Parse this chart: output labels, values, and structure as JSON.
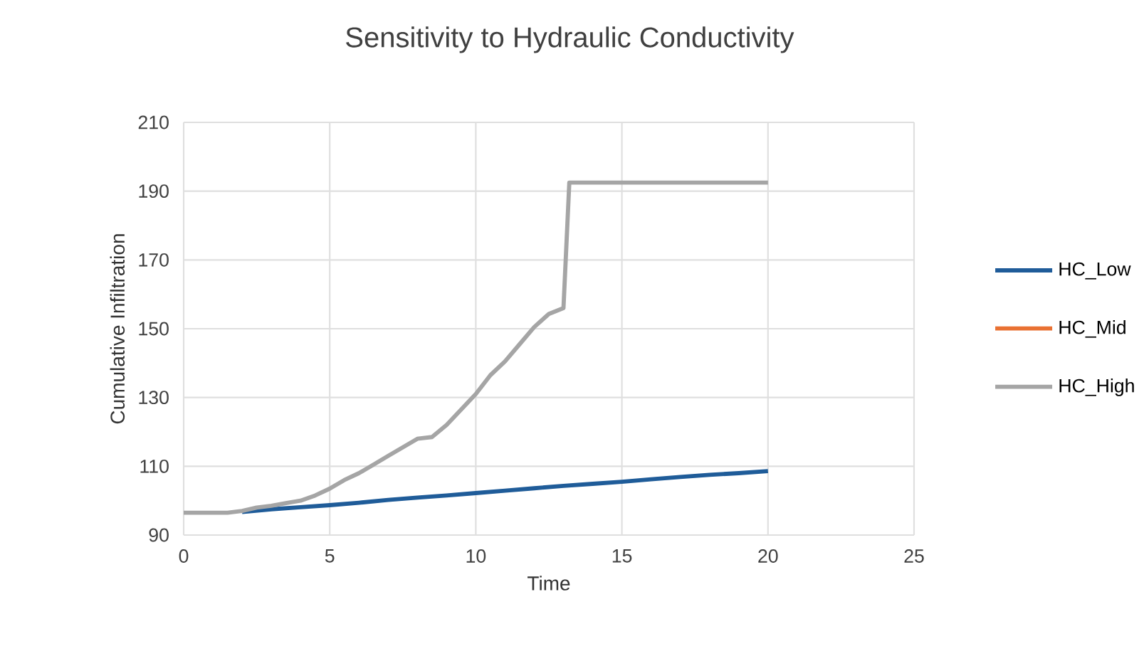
{
  "chart_data": {
    "type": "line",
    "title": "Sensitivity to Hydraulic Conductivity",
    "xlabel": "Time",
    "ylabel": "Cumulative Infiltration",
    "xlim": [
      0,
      25
    ],
    "xticks": [
      0,
      5,
      10,
      15,
      20,
      25
    ],
    "ylim": [
      90,
      210
    ],
    "yticks": [
      90,
      110,
      130,
      150,
      170,
      190,
      210
    ],
    "grid": true,
    "legend": "right",
    "marker": "none",
    "line_style": "solid",
    "series": [
      {
        "name": "HC_Low",
        "color": "#1f5c99",
        "x": [
          2,
          3,
          4,
          5,
          6,
          7,
          8,
          9,
          10,
          11,
          12,
          13,
          14,
          15,
          16,
          17,
          18,
          19,
          20
        ],
        "values": [
          96.7,
          97.5,
          98.1,
          98.7,
          99.4,
          100.2,
          100.9,
          101.5,
          102.2,
          102.9,
          103.6,
          104.3,
          104.9,
          105.5,
          106.2,
          106.9,
          107.5,
          108,
          108.6
        ]
      },
      {
        "name": "HC_Mid",
        "color": "#e97132",
        "values": [
          null,
          null
        ]
      },
      {
        "name": "HC_High",
        "color": "#a5a5a5",
        "x": [
          0,
          1.5,
          2,
          2.5,
          3,
          3.5,
          4,
          4.5,
          5,
          5.5,
          6,
          6.5,
          7,
          7.5,
          8,
          8.5,
          9,
          9.5,
          10,
          10.5,
          11,
          11.5,
          12,
          12.5,
          13,
          13.2,
          20
        ],
        "values": [
          96.5,
          96.5,
          97,
          98,
          98.5,
          99.3,
          100,
          101.5,
          103.5,
          106,
          108,
          110.5,
          113,
          115.5,
          118,
          118.5,
          122,
          126.5,
          131,
          136.5,
          140.5,
          145.5,
          150.5,
          154.3,
          156,
          192.5,
          192.5
        ]
      }
    ]
  }
}
